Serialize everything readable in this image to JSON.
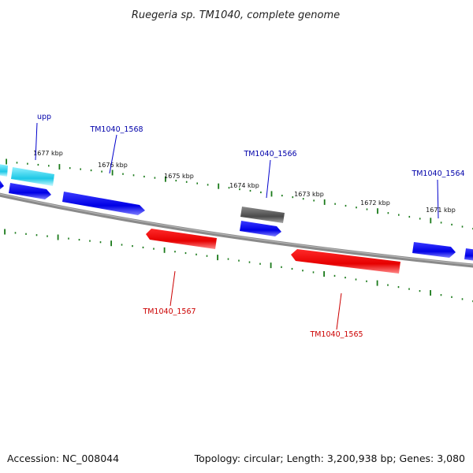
{
  "title": "Ruegeria sp. TM1040, complete genome",
  "footer": {
    "accession": "Accession: NC_008044",
    "summary": "Topology: circular; Length: 3,200,938 bp; Genes: 3,080"
  },
  "colors": {
    "backbone": "#8a8a8a",
    "tick": "#1a7a1a",
    "forward_gene": "#0000ee",
    "reverse_gene": "#ee0000",
    "other_gene": "#555555",
    "rna_gene": "#22c8e0",
    "forward_label": "#0000aa",
    "reverse_label": "#cc0000"
  },
  "scale": {
    "unit": "kbp",
    "ticks": [
      "1677 kbp",
      "1676 kbp",
      "1675 kbp",
      "1674 kbp",
      "1673 kbp",
      "1672 kbp",
      "1671 kbp"
    ]
  },
  "genes": [
    {
      "id": "upp",
      "label": "upp",
      "strand": "forward"
    },
    {
      "id": "TM1040_1568",
      "label": "TM1040_1568",
      "strand": "forward"
    },
    {
      "id": "TM1040_1567",
      "label": "TM1040_1567",
      "strand": "reverse"
    },
    {
      "id": "TM1040_1566",
      "label": "TM1040_1566",
      "strand": "forward"
    },
    {
      "id": "TM1040_1565",
      "label": "TM1040_1565",
      "strand": "reverse"
    },
    {
      "id": "TM1040_1564",
      "label": "TM1040_1564",
      "strand": "forward"
    }
  ]
}
